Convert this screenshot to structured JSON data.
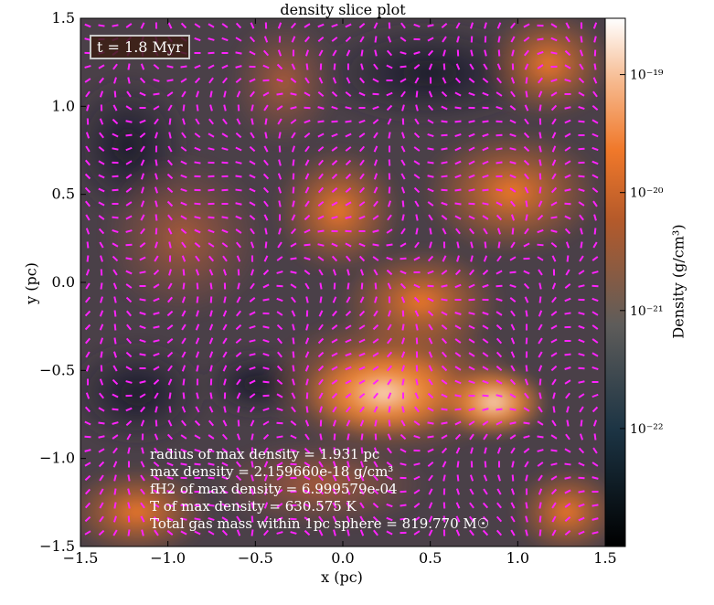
{
  "chart_data": {
    "type": "heatmap",
    "title": "density slice plot",
    "xlabel": "x  (pc)",
    "ylabel": "y  (pc)",
    "xlim": [
      -1.5,
      1.5
    ],
    "ylim": [
      -1.5,
      1.5
    ],
    "xticks": [
      "−1.5",
      "−1.0",
      "−0.5",
      "0.0",
      "0.5",
      "1.0",
      "1.5"
    ],
    "yticks": [
      "1.5",
      "1.0",
      "0.5",
      "0.0",
      "−0.5",
      "−1.0",
      "−1.5"
    ],
    "colorbar": {
      "label": "Density  (g/cm³)",
      "scale": "log",
      "range": [
        1e-23,
        3e-19
      ],
      "ticks": [
        {
          "value": 1e-19,
          "label": "10⁻¹⁹"
        },
        {
          "value": 1e-20,
          "label": "10⁻²⁰"
        },
        {
          "value": 1e-21,
          "label": "10⁻²¹"
        },
        {
          "value": 1e-22,
          "label": "10⁻²²"
        }
      ]
    },
    "overlay": "velocity vectors (magenta arrows)",
    "time_label": "t = 1.8 Myr",
    "annotations": [
      "radius of max density = 1.931 pc",
      "max density = 2.159660e-18 g/cm³",
      "fH2 of max density = 6.999579e-04",
      "T of max density = 630.575 K",
      "Total gas mass within 1pc sphere = 819.770 M☉"
    ]
  },
  "colors": {
    "colormap": [
      "#000000",
      "#1b2a3a",
      "#5a5a5a",
      "#a0583a",
      "#f07a2a",
      "#f6b98c",
      "#ffffff"
    ],
    "arrow": "#ff22ff"
  }
}
